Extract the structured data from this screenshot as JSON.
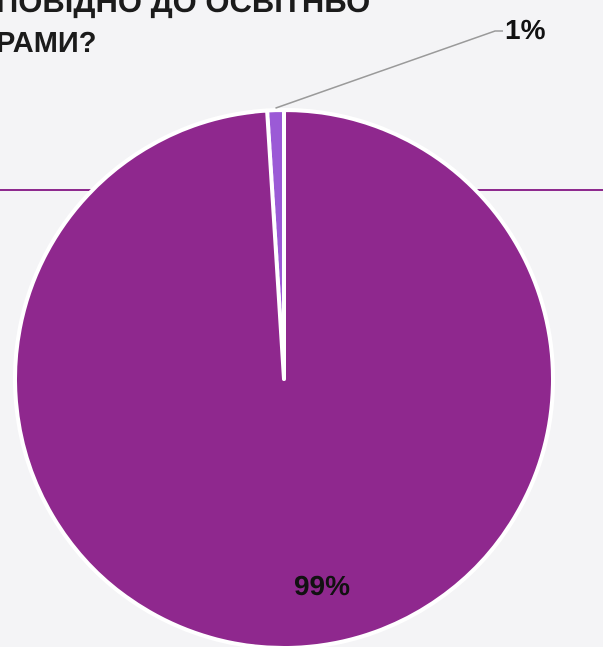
{
  "title": {
    "line1": "ПОВІДНО ДО ОСВІТНЬО",
    "line2": "РАМИ?"
  },
  "colors": {
    "background": "#f4f4f6",
    "header_rule": "#8e2a8e",
    "slice_major": "#8f288e",
    "slice_minor": "#9b5ad6",
    "leader_line": "#9a9a9a",
    "separator": "#ffffff"
  },
  "chart_data": {
    "type": "pie",
    "categories": [
      "",
      ""
    ],
    "values": [
      1,
      99
    ],
    "labels": [
      "1%",
      "99%"
    ],
    "colors": [
      "#9b5ad6",
      "#8f288e"
    ],
    "title": "",
    "legend": "none",
    "data_labels": true
  }
}
